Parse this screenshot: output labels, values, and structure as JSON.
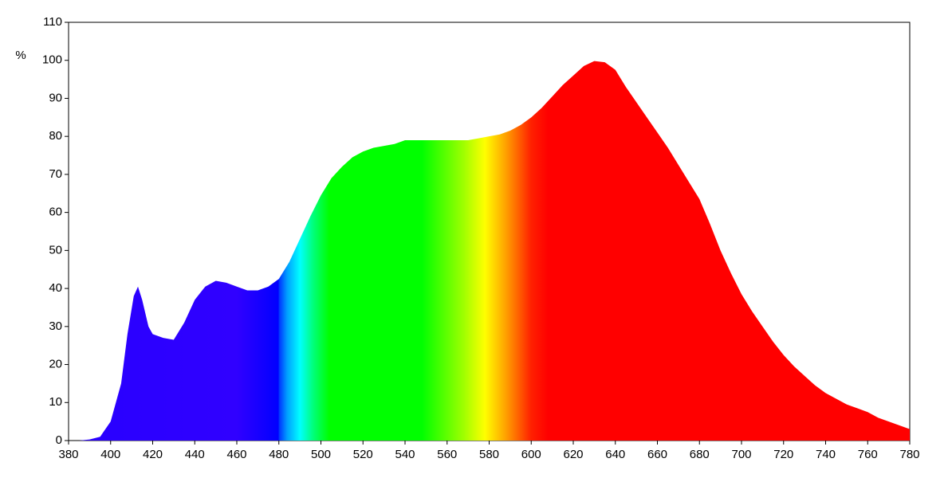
{
  "chart_data": {
    "type": "area",
    "ylabel": "%",
    "x": [
      380,
      385,
      390,
      395,
      400,
      405,
      408,
      411,
      413,
      415,
      418,
      420,
      425,
      430,
      435,
      440,
      445,
      450,
      455,
      460,
      465,
      470,
      475,
      480,
      485,
      490,
      495,
      500,
      505,
      510,
      515,
      520,
      525,
      530,
      535,
      540,
      545,
      550,
      555,
      560,
      565,
      570,
      575,
      580,
      585,
      590,
      595,
      600,
      605,
      610,
      615,
      620,
      625,
      630,
      635,
      640,
      645,
      650,
      655,
      660,
      665,
      670,
      675,
      680,
      685,
      690,
      695,
      700,
      705,
      710,
      715,
      720,
      725,
      730,
      735,
      740,
      745,
      750,
      755,
      760,
      765,
      770,
      775,
      780
    ],
    "values": [
      0,
      0,
      0.3,
      1,
      5,
      15,
      28,
      38,
      40.5,
      37,
      30,
      28,
      27,
      26.5,
      31,
      37,
      40.5,
      42,
      41.5,
      40.5,
      39.5,
      39.5,
      40.5,
      42.5,
      47,
      53,
      59,
      64.5,
      69,
      72,
      74.5,
      76,
      77,
      77.5,
      78,
      79,
      79,
      79,
      79,
      79,
      79,
      79,
      79.5,
      80,
      80.5,
      81.5,
      83,
      85,
      87.5,
      90.5,
      93.5,
      96,
      98.5,
      99.8,
      99.5,
      97.5,
      93,
      89,
      85,
      81,
      77,
      72.5,
      68,
      63.5,
      57,
      50,
      44,
      38.5,
      34,
      30,
      26,
      22.5,
      19.5,
      17,
      14.5,
      12.5,
      11,
      9.5,
      8.5,
      7.5,
      6,
      5,
      4,
      3
    ],
    "xlim": [
      380,
      780
    ],
    "ylim": [
      0,
      110
    ],
    "xticks": [
      380,
      400,
      420,
      440,
      460,
      480,
      500,
      520,
      540,
      560,
      580,
      600,
      620,
      640,
      660,
      680,
      700,
      720,
      740,
      760,
      780
    ],
    "yticks": [
      0,
      10,
      20,
      30,
      40,
      50,
      60,
      70,
      80,
      90,
      100,
      110
    ]
  }
}
